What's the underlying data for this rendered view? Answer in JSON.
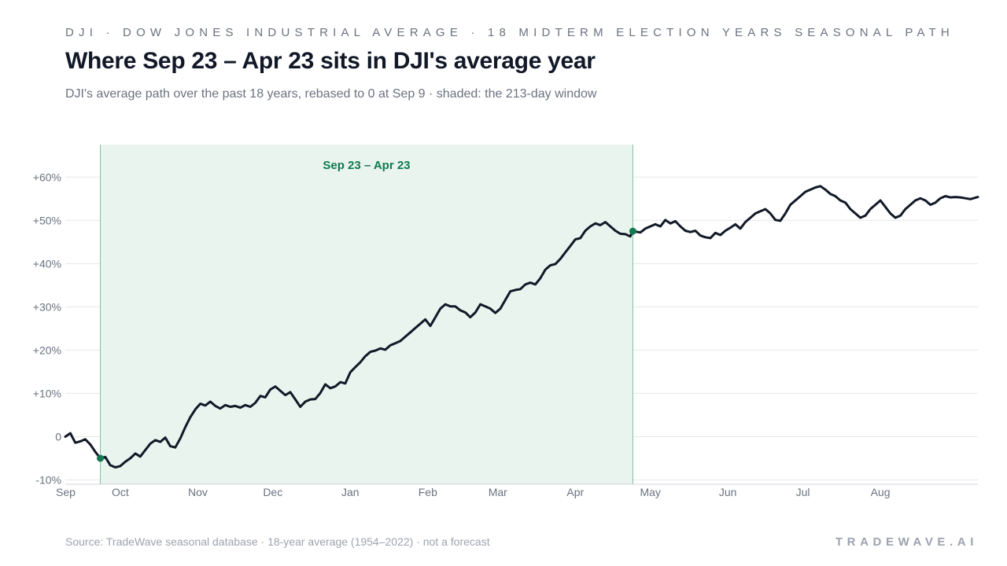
{
  "header": {
    "kicker": "DJI · DOW JONES INDUSTRIAL AVERAGE · 18 MIDTERM ELECTION YEARS SEASONAL PATH",
    "title": "Where Sep 23 – Apr 23 sits in DJI's average year",
    "subtitle": "DJI's average path over the past 18 years, rebased to 0 at Sep 9 · shaded: the 213-day window"
  },
  "footer": {
    "source": "Source: TradeWave seasonal database · 18-year average (1954–2022) · not a forecast",
    "brand": "TRADEWAVE.AI"
  },
  "colors": {
    "line": "#111827",
    "window_fill": "#eaf4ef",
    "window_edge": "#7fbfa0",
    "accent": "#0f7a4f",
    "grid": "#e5e7eb",
    "axis": "#d1d5db"
  },
  "chart_data": {
    "type": "line",
    "title": "Where Sep 23 – Apr 23 sits in DJI's average year",
    "xlabel": "",
    "ylabel": "",
    "y_unit": "%",
    "ylim": [
      -11,
      67.5
    ],
    "yticks": [
      -10,
      0,
      10,
      20,
      30,
      40,
      50,
      60
    ],
    "ytick_labels": [
      "-10%",
      "0",
      "+10%",
      "+20%",
      "+30%",
      "+40%",
      "+50%",
      "+60%"
    ],
    "x_domain_days": [
      0,
      365
    ],
    "xticks": [
      {
        "label": "Sep",
        "day": 0
      },
      {
        "label": "Oct",
        "day": 22
      },
      {
        "label": "Nov",
        "day": 53
      },
      {
        "label": "Dec",
        "day": 83
      },
      {
        "label": "Jan",
        "day": 114
      },
      {
        "label": "Feb",
        "day": 145
      },
      {
        "label": "Mar",
        "day": 173
      },
      {
        "label": "Apr",
        "day": 204
      },
      {
        "label": "May",
        "day": 234
      },
      {
        "label": "Jun",
        "day": 265
      },
      {
        "label": "Jul",
        "day": 295
      },
      {
        "label": "Aug",
        "day": 326
      }
    ],
    "grid": true,
    "window": {
      "label": "Sep 23 – Apr 23",
      "start_day": 14,
      "end_day": 227,
      "start_value": -5,
      "end_value": 47.5
    },
    "series": [
      {
        "points": [
          [
            0,
            0
          ],
          [
            2,
            0.8
          ],
          [
            4,
            -1.4
          ],
          [
            6,
            -1.1
          ],
          [
            8,
            -0.6
          ],
          [
            10,
            -1.8
          ],
          [
            12,
            -3.5
          ],
          [
            14,
            -5
          ],
          [
            16,
            -4.7
          ],
          [
            18,
            -6.6
          ],
          [
            20,
            -7.1
          ],
          [
            22,
            -6.8
          ],
          [
            24,
            -5.8
          ],
          [
            26,
            -5
          ],
          [
            28,
            -3.9
          ],
          [
            30,
            -4.6
          ],
          [
            32,
            -3.1
          ],
          [
            34,
            -1.6
          ],
          [
            36,
            -0.8
          ],
          [
            38,
            -1.2
          ],
          [
            40,
            -0.2
          ],
          [
            42,
            -2.2
          ],
          [
            44,
            -2.5
          ],
          [
            46,
            -0.4
          ],
          [
            48,
            2.2
          ],
          [
            50,
            4.5
          ],
          [
            52,
            6.3
          ],
          [
            54,
            7.6
          ],
          [
            56,
            7.2
          ],
          [
            58,
            8.1
          ],
          [
            60,
            7.1
          ],
          [
            62,
            6.5
          ],
          [
            64,
            7.3
          ],
          [
            66,
            6.9
          ],
          [
            68,
            7.1
          ],
          [
            70,
            6.7
          ],
          [
            72,
            7.3
          ],
          [
            74,
            6.9
          ],
          [
            76,
            7.8
          ],
          [
            78,
            9.4
          ],
          [
            80,
            9.1
          ],
          [
            82,
            10.9
          ],
          [
            84,
            11.6
          ],
          [
            86,
            10.6
          ],
          [
            88,
            9.6
          ],
          [
            90,
            10.3
          ],
          [
            92,
            8.6
          ],
          [
            94,
            6.9
          ],
          [
            96,
            8.1
          ],
          [
            98,
            8.6
          ],
          [
            100,
            8.7
          ],
          [
            102,
            10.1
          ],
          [
            104,
            12.1
          ],
          [
            106,
            11.2
          ],
          [
            108,
            11.6
          ],
          [
            110,
            12.6
          ],
          [
            112,
            12.3
          ],
          [
            114,
            14.9
          ],
          [
            116,
            16.1
          ],
          [
            118,
            17.2
          ],
          [
            120,
            18.6
          ],
          [
            122,
            19.6
          ],
          [
            124,
            19.9
          ],
          [
            126,
            20.4
          ],
          [
            128,
            20.1
          ],
          [
            130,
            21.1
          ],
          [
            132,
            21.6
          ],
          [
            134,
            22.1
          ],
          [
            136,
            23.1
          ],
          [
            138,
            24.1
          ],
          [
            140,
            25.1
          ],
          [
            142,
            26.1
          ],
          [
            144,
            27.1
          ],
          [
            146,
            25.6
          ],
          [
            148,
            27.6
          ],
          [
            150,
            29.6
          ],
          [
            152,
            30.6
          ],
          [
            154,
            30.1
          ],
          [
            156,
            30.1
          ],
          [
            158,
            29.2
          ],
          [
            160,
            28.7
          ],
          [
            162,
            27.6
          ],
          [
            164,
            28.7
          ],
          [
            166,
            30.6
          ],
          [
            168,
            30.1
          ],
          [
            170,
            29.6
          ],
          [
            172,
            28.6
          ],
          [
            174,
            29.6
          ],
          [
            176,
            31.6
          ],
          [
            178,
            33.6
          ],
          [
            180,
            33.9
          ],
          [
            182,
            34.1
          ],
          [
            184,
            35.2
          ],
          [
            186,
            35.6
          ],
          [
            188,
            35.2
          ],
          [
            190,
            36.6
          ],
          [
            192,
            38.6
          ],
          [
            194,
            39.6
          ],
          [
            196,
            39.9
          ],
          [
            198,
            41.1
          ],
          [
            200,
            42.6
          ],
          [
            202,
            44.1
          ],
          [
            204,
            45.6
          ],
          [
            206,
            45.9
          ],
          [
            208,
            47.6
          ],
          [
            210,
            48.6
          ],
          [
            212,
            49.3
          ],
          [
            214,
            48.9
          ],
          [
            216,
            49.6
          ],
          [
            218,
            48.6
          ],
          [
            220,
            47.6
          ],
          [
            222,
            46.9
          ],
          [
            224,
            46.8
          ],
          [
            226,
            46.3
          ],
          [
            227,
            47.5
          ],
          [
            230,
            47.2
          ],
          [
            232,
            48.1
          ],
          [
            234,
            48.6
          ],
          [
            236,
            49.1
          ],
          [
            238,
            48.6
          ],
          [
            240,
            50.1
          ],
          [
            242,
            49.3
          ],
          [
            244,
            49.8
          ],
          [
            246,
            48.6
          ],
          [
            248,
            47.6
          ],
          [
            250,
            47.3
          ],
          [
            252,
            47.6
          ],
          [
            254,
            46.5
          ],
          [
            256,
            46.1
          ],
          [
            258,
            45.9
          ],
          [
            260,
            47.1
          ],
          [
            262,
            46.6
          ],
          [
            264,
            47.6
          ],
          [
            266,
            48.3
          ],
          [
            268,
            49.1
          ],
          [
            270,
            48.1
          ],
          [
            272,
            49.6
          ],
          [
            274,
            50.6
          ],
          [
            276,
            51.6
          ],
          [
            278,
            52.1
          ],
          [
            280,
            52.6
          ],
          [
            282,
            51.6
          ],
          [
            284,
            50.1
          ],
          [
            286,
            49.9
          ],
          [
            288,
            51.6
          ],
          [
            290,
            53.6
          ],
          [
            292,
            54.6
          ],
          [
            294,
            55.6
          ],
          [
            296,
            56.6
          ],
          [
            298,
            57.1
          ],
          [
            300,
            57.6
          ],
          [
            302,
            57.9
          ],
          [
            304,
            57.1
          ],
          [
            306,
            56.1
          ],
          [
            308,
            55.6
          ],
          [
            310,
            54.6
          ],
          [
            312,
            54.1
          ],
          [
            314,
            52.6
          ],
          [
            316,
            51.6
          ],
          [
            318,
            50.6
          ],
          [
            320,
            51.1
          ],
          [
            322,
            52.6
          ],
          [
            324,
            53.6
          ],
          [
            326,
            54.6
          ],
          [
            328,
            53.1
          ],
          [
            330,
            51.6
          ],
          [
            332,
            50.6
          ],
          [
            334,
            51.1
          ],
          [
            336,
            52.6
          ],
          [
            338,
            53.6
          ],
          [
            340,
            54.6
          ],
          [
            342,
            55.1
          ],
          [
            344,
            54.6
          ],
          [
            346,
            53.6
          ],
          [
            348,
            54.1
          ],
          [
            350,
            55.1
          ],
          [
            352,
            55.6
          ],
          [
            354,
            55.3
          ],
          [
            356,
            55.4
          ],
          [
            358,
            55.3
          ],
          [
            360,
            55.1
          ],
          [
            362,
            54.9
          ],
          [
            365,
            55.4
          ]
        ]
      }
    ]
  }
}
